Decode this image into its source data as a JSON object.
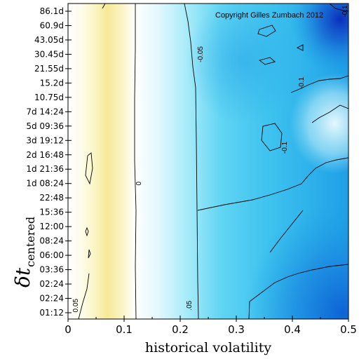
{
  "chart_data": {
    "type": "heatmap",
    "title": "",
    "copyright": "Copyright Gilles Zumbach 2012",
    "xlabel": "historical volatility",
    "ylabel_main": "δt",
    "ylabel_sub": "centered",
    "xlim": [
      0,
      0.5
    ],
    "x_ticks": [
      "0",
      "0.1",
      "0.2",
      "0.3",
      "0.4",
      "0.5"
    ],
    "y_ticks": [
      "86.1d",
      "60.9d",
      "43.05d",
      "30.45d",
      "21.55d",
      "15.2d",
      "10.75d",
      "7d 14:24",
      "5d 09:36",
      "3d 19:12",
      "2d 16:48",
      "1d 21:36",
      "1d 08:24",
      "22:48",
      "15:36",
      "12:00",
      "08:24",
      "06:00",
      "03:36",
      "02:24",
      "02:24",
      "01:12"
    ],
    "contour_levels": [
      "0.05",
      "0",
      "-0.05",
      "-0.1"
    ],
    "contour_labels": [
      {
        "text": "0.05",
        "x": 0.025,
        "y": 0.5
      },
      {
        "text": "0",
        "x": 0.25,
        "y": 9.0
      },
      {
        "text": "-0.05",
        "x": 0.47,
        "y": 18.0
      },
      {
        "text": "-0.1",
        "x": 0.83,
        "y": 16.0
      },
      {
        "text": "-0.1",
        "x": 0.77,
        "y": 11.5
      },
      {
        "text": ".05",
        "x": 0.43,
        "y": 0.5
      },
      {
        "text": "-0.1",
        "x": 0.985,
        "y": 21.0
      }
    ],
    "grid": false,
    "legend": "none",
    "colormap": [
      "#ffffff",
      "#fbf6c9",
      "#f4e38a",
      "#fbf6c9",
      "#ffffff",
      "#e3f8fd",
      "#a9ecf9",
      "#55d1f2",
      "#2fb6ec",
      "#1b97e4",
      "#0b44c6"
    ]
  }
}
